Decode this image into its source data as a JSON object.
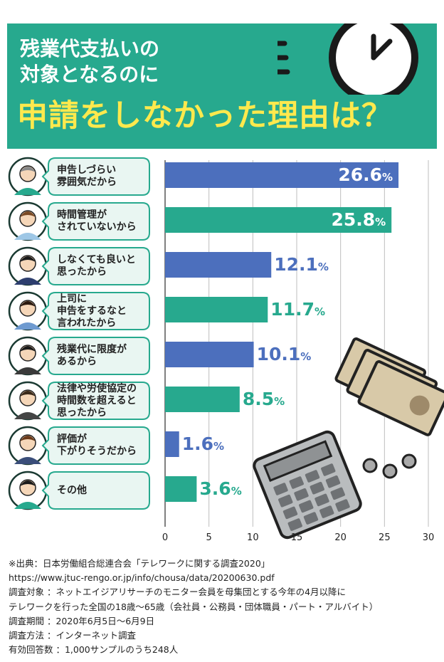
{
  "header": {
    "title_line1": "残業代支払いの",
    "title_line2": "対象となるのに",
    "subtitle": "申請をしなかった理由は？"
  },
  "colors": {
    "header_bg": "#27a98e",
    "highlight": "#ffe94d",
    "bar_blue": "#4c6fbd",
    "bar_teal": "#27a98e",
    "bubble_bg": "#e9f6f2"
  },
  "chart_data": {
    "type": "bar",
    "orientation": "horizontal",
    "categories": [
      [
        "申告しづらい",
        "雰囲気だから"
      ],
      [
        "時間管理が",
        "されていないから"
      ],
      [
        "しなくても良いと",
        "思ったから"
      ],
      [
        "上司に",
        "申告をするなと",
        "言われたから"
      ],
      [
        "残業代に限度が",
        "あるから"
      ],
      [
        "法律や労使協定の",
        "時間数を超えると",
        "思ったから"
      ],
      [
        "評価が",
        "下がりそうだから"
      ],
      [
        "その他"
      ]
    ],
    "values": [
      26.6,
      25.8,
      12.1,
      11.7,
      10.1,
      8.5,
      1.6,
      3.6
    ],
    "value_labels": [
      "26.6",
      "25.8",
      "12.1",
      "11.7",
      "10.1",
      "8.5",
      "1.6",
      "3.6"
    ],
    "unit": "%",
    "bar_colors": [
      "#4c6fbd",
      "#27a98e",
      "#4c6fbd",
      "#27a98e",
      "#4c6fbd",
      "#27a98e",
      "#4c6fbd",
      "#27a98e"
    ],
    "xlim": [
      0,
      30
    ],
    "xticks": [
      0,
      5,
      10,
      15,
      20,
      25,
      30
    ],
    "grid": true
  },
  "notes": [
    "※出典：日本労働組合総連合会「テレワークに関する調査2020」",
    "https://www.jtuc-rengo.or.jp/info/chousa/data/20200630.pdf",
    "調査対象 ：ネットエイジアリサーチのモニター会員を母集団とする今年の4月以降に",
    "テレワークを行った全国の18歳～65歳（会社員・公務員・団体職員・パート・アルバイト）",
    "調査期間 ：2020年6月5日～6月9日",
    "調査方法 ：インターネット調査",
    "有効回答数 ：1,000サンプルのうち248人"
  ]
}
